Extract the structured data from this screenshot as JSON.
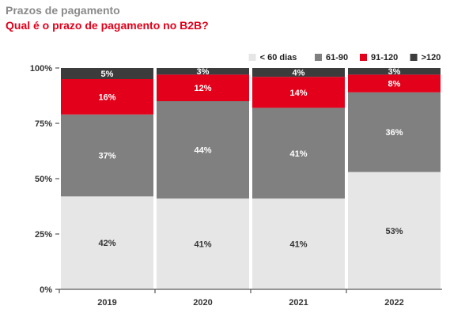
{
  "header": {
    "title": "Prazos de pagamento",
    "subtitle": "Qual é o prazo de pagamento no B2B?"
  },
  "chart_data": {
    "type": "bar",
    "stacked": true,
    "categories": [
      "2019",
      "2020",
      "2021",
      "2022"
    ],
    "series": [
      {
        "name": "< 60 dias",
        "color": "#e6e6e6",
        "label_color": "#333333",
        "values": [
          42,
          41,
          41,
          53
        ]
      },
      {
        "name": "61-90",
        "color": "#808080",
        "label_color": "#ffffff",
        "values": [
          37,
          44,
          41,
          36
        ]
      },
      {
        "name": "91-120",
        "color": "#e2001a",
        "label_color": "#ffffff",
        "values": [
          16,
          12,
          14,
          8
        ]
      },
      {
        "name": ">120",
        "color": "#3c3c3c",
        "label_color": "#ffffff",
        "values": [
          5,
          3,
          4,
          3
        ]
      }
    ],
    "y_ticks": [
      "0%",
      "25%",
      "50%",
      "75%",
      "100%"
    ],
    "ylim": [
      0,
      100
    ],
    "value_suffix": "%",
    "grid": false,
    "legend_position": "top-right"
  }
}
